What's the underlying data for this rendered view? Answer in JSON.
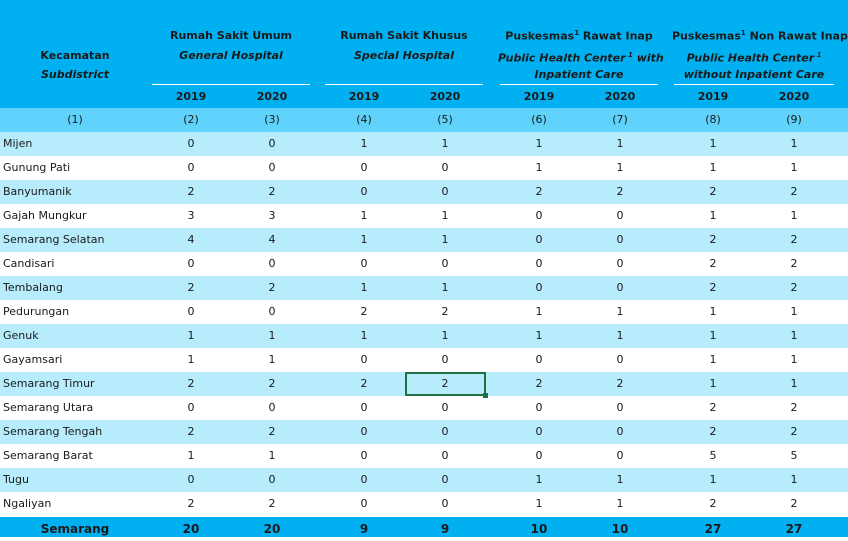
{
  "header": {
    "kecamatan": "Kecamatan",
    "subdistrict": "Subdistrict",
    "rsu": "Rumah Sakit Umum",
    "rsu_en": "General Hospital",
    "rsk": "Rumah Sakit Khusus",
    "rsk_en": "Special Hospital",
    "pri": "Puskesmas",
    "pri_sup": "1",
    "pri_rest": " Rawat Inap",
    "pri_en": "Public Health Center",
    "pri_en_sup": "1",
    "pri_en_rest": " with",
    "pri_en2": "Inpatient Care",
    "pnr": "Puskesmas",
    "pnr_sup": "1",
    "pnr_rest": " Non Rawat Inap",
    "pnr_en": "Public Health Center",
    "pnr_en_sup": "1",
    "pnr_en2": "without Inpatient Care",
    "years": [
      "2019",
      "2020",
      "2019",
      "2020",
      "2019",
      "2020",
      "2019",
      "2020"
    ]
  },
  "index_row": [
    "(1)",
    "(2)",
    "(3)",
    "(4)",
    "(5)",
    "(6)",
    "(7)",
    "(8)",
    "(9)"
  ],
  "rows": [
    {
      "name": "Mijen",
      "v": [
        "0",
        "0",
        "1",
        "1",
        "1",
        "1",
        "1",
        "1"
      ]
    },
    {
      "name": "Gunung Pati",
      "v": [
        "0",
        "0",
        "0",
        "0",
        "1",
        "1",
        "1",
        "1"
      ]
    },
    {
      "name": "Banyumanik",
      "v": [
        "2",
        "2",
        "0",
        "0",
        "2",
        "2",
        "2",
        "2"
      ]
    },
    {
      "name": "Gajah Mungkur",
      "v": [
        "3",
        "3",
        "1",
        "1",
        "0",
        "0",
        "1",
        "1"
      ]
    },
    {
      "name": "Semarang Selatan",
      "v": [
        "4",
        "4",
        "1",
        "1",
        "0",
        "0",
        "2",
        "2"
      ]
    },
    {
      "name": "Candisari",
      "v": [
        "0",
        "0",
        "0",
        "0",
        "0",
        "0",
        "2",
        "2"
      ]
    },
    {
      "name": "Tembalang",
      "v": [
        "2",
        "2",
        "1",
        "1",
        "0",
        "0",
        "2",
        "2"
      ]
    },
    {
      "name": "Pedurungan",
      "v": [
        "0",
        "0",
        "2",
        "2",
        "1",
        "1",
        "1",
        "1"
      ]
    },
    {
      "name": "Genuk",
      "v": [
        "1",
        "1",
        "1",
        "1",
        "1",
        "1",
        "1",
        "1"
      ]
    },
    {
      "name": "Gayamsari",
      "v": [
        "1",
        "1",
        "0",
        "0",
        "0",
        "0",
        "1",
        "1"
      ]
    },
    {
      "name": "Semarang Timur",
      "v": [
        "2",
        "2",
        "2",
        "2",
        "2",
        "2",
        "1",
        "1"
      ]
    },
    {
      "name": "Semarang Utara",
      "v": [
        "0",
        "0",
        "0",
        "0",
        "0",
        "0",
        "2",
        "2"
      ]
    },
    {
      "name": "Semarang Tengah",
      "v": [
        "2",
        "2",
        "0",
        "0",
        "0",
        "0",
        "2",
        "2"
      ]
    },
    {
      "name": "Semarang Barat",
      "v": [
        "1",
        "1",
        "0",
        "0",
        "0",
        "0",
        "5",
        "5"
      ]
    },
    {
      "name": "Tugu",
      "v": [
        "0",
        "0",
        "0",
        "0",
        "1",
        "1",
        "1",
        "1"
      ]
    },
    {
      "name": "Ngaliyan",
      "v": [
        "2",
        "2",
        "0",
        "0",
        "1",
        "1",
        "2",
        "2"
      ]
    }
  ],
  "total": {
    "name": "Semarang",
    "v": [
      "20",
      "20",
      "9",
      "9",
      "10",
      "10",
      "27",
      "27"
    ]
  }
}
